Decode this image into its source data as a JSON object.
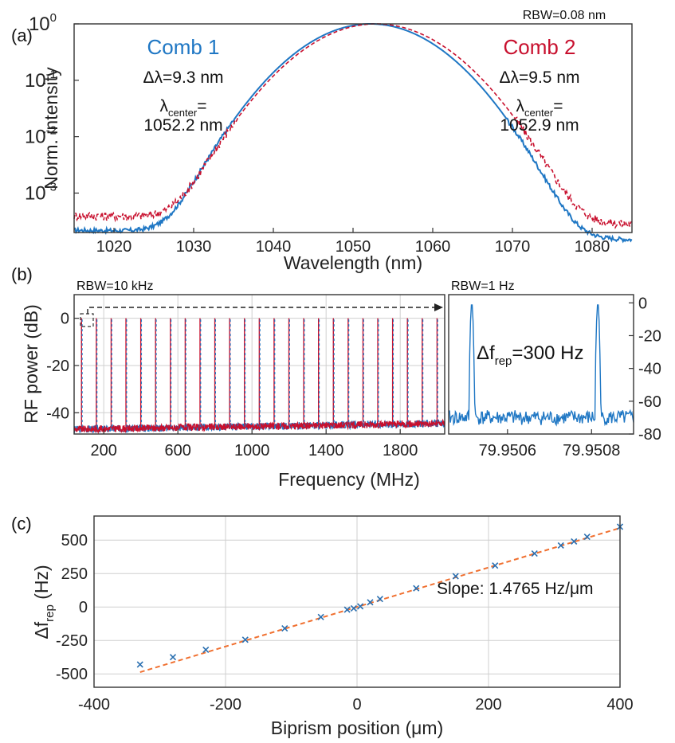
{
  "colors": {
    "comb1": "#1f77c4",
    "comb2": "#c8102e",
    "fit": "#f07030",
    "marker": "#2a6fb0"
  },
  "panel_labels": [
    "(a)",
    "(b)",
    "(c)"
  ],
  "chart_data": [
    {
      "id": "a",
      "type": "line",
      "xlabel": "Wavelength (nm)",
      "ylabel": "Norm. intensity",
      "xlim": [
        1015,
        1085
      ],
      "yscale": "log",
      "ylim_exp": [
        -3.7,
        0
      ],
      "xticks": [
        1020,
        1030,
        1040,
        1050,
        1060,
        1070,
        1080
      ],
      "ytick_labels": [
        {
          "base": "10",
          "exp": "0",
          "e": 0
        },
        {
          "base": "10",
          "exp": "-1",
          "e": -1
        },
        {
          "base": "10",
          "exp": "-2",
          "e": -2
        },
        {
          "base": "10",
          "exp": "-3",
          "e": -3
        }
      ],
      "rbw": "RBW=0.08 nm",
      "series": [
        {
          "name": "Comb 1",
          "center": 1052.2,
          "fwhm": 9.3,
          "floor_left": 0.00022,
          "floor_right": 0.00015,
          "style": "solid",
          "dl": "Δλ=9.3 nm",
          "lc_prefix": "λ",
          "lc_sub": "center",
          "lc_suffix": "=",
          "lc_value": "1052.2 nm"
        },
        {
          "name": "Comb 2",
          "center": 1052.9,
          "fwhm": 9.5,
          "floor_left": 0.0004,
          "floor_right": 0.00028,
          "style": "dashed",
          "dl": "Δλ=9.5 nm",
          "lc_prefix": "λ",
          "lc_sub": "center",
          "lc_suffix": "=",
          "lc_value": "1052.9 nm"
        }
      ]
    },
    {
      "id": "b-left",
      "type": "line",
      "xlabel": "Frequency (MHz)",
      "ylabel": "RF power (dB)",
      "xlim": [
        40,
        2040
      ],
      "ylim": [
        -49,
        10
      ],
      "xticks": [
        200,
        600,
        1000,
        1400,
        1800
      ],
      "yticks": [
        0,
        -20,
        -40
      ],
      "rbw": "RBW=10 kHz",
      "line_spacing_mhz": 79.95,
      "n_lines": 25,
      "noise_floor_db": -47
    },
    {
      "id": "b-right",
      "type": "line",
      "xlim": [
        79.95046,
        79.9509
      ],
      "ylim": [
        -80,
        5
      ],
      "xticks": [
        79.9506,
        79.9508
      ],
      "yticks": [
        0,
        -20,
        -40,
        -60,
        -80
      ],
      "rbw": "RBW=1 Hz",
      "peaks": [
        79.950515,
        79.950815
      ],
      "noise_floor_db": -70,
      "label_prefix": "Δf",
      "label_sub": "rep",
      "label_suffix": "=300 Hz"
    },
    {
      "id": "c",
      "type": "scatter",
      "xlabel": "Biprism position (μm)",
      "ylabel_main": "Δf",
      "ylabel_sub": "rep",
      "ylabel_unit": " (Hz)",
      "xlim": [
        -400,
        400
      ],
      "ylim": [
        -600,
        680
      ],
      "xticks": [
        -400,
        -200,
        0,
        200,
        400
      ],
      "yticks": [
        500,
        250,
        0,
        -250,
        -500
      ],
      "slope_label": "Slope: 1.4765 Hz/μm",
      "slope": 1.4765,
      "x": [
        -330,
        -280,
        -230,
        -170,
        -110,
        -55,
        -15,
        -5,
        5,
        20,
        35,
        90,
        150,
        210,
        270,
        310,
        330,
        350,
        400
      ],
      "y": [
        -430,
        -375,
        -320,
        -245,
        -160,
        -75,
        -20,
        -10,
        5,
        35,
        60,
        140,
        230,
        310,
        400,
        460,
        490,
        525,
        600
      ]
    }
  ]
}
